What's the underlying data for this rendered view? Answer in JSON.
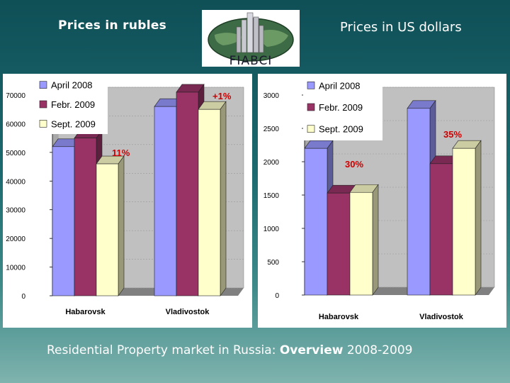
{
  "slide": {
    "left_title": "Prices in rubles",
    "right_title": "Prices in US dollars",
    "logo_text": "FIABCI",
    "footer_part1": "Residential Property market in Russia",
    "footer_sep": ": ",
    "footer_part2": "Overview",
    "footer_part3": " 2008-2009"
  },
  "colors": {
    "april_2008": "#9999ff",
    "febr_2009": "#993366",
    "sept_2009": "#ffffcc",
    "annotation": "#cc0000",
    "floor": "#808080",
    "wall": "#c0c0c0"
  },
  "chart_data": [
    {
      "type": "bar",
      "categories": [
        "Habarovsk",
        "Vladivostok"
      ],
      "series": [
        {
          "name": "April 2008",
          "values": [
            52000,
            66000
          ]
        },
        {
          "name": "Febr. 2009",
          "values": [
            55000,
            71000
          ]
        },
        {
          "name": "Sept. 2009",
          "values": [
            46000,
            65000
          ]
        }
      ],
      "ylim": [
        0,
        70000
      ],
      "yticks": [
        "0",
        "10000",
        "20000",
        "30000",
        "40000",
        "50000",
        "60000",
        "70000"
      ],
      "annotations": [
        "+1%",
        "11%"
      ],
      "legend": "top-left",
      "three_d": true
    },
    {
      "type": "bar",
      "categories": [
        "Habarovsk",
        "Vladivostok"
      ],
      "series": [
        {
          "name": "April 2008",
          "values": [
            2200,
            2800
          ]
        },
        {
          "name": "Febr. 2009",
          "values": [
            1530,
            1970
          ]
        },
        {
          "name": "Sept. 2009",
          "values": [
            1540,
            2200
          ]
        }
      ],
      "ylim": [
        0,
        3000
      ],
      "yticks": [
        "0",
        "500",
        "1000",
        "1500",
        "2000",
        "2500",
        "3000"
      ],
      "annotations": [
        "35%",
        "30%"
      ],
      "legend": "top-left",
      "three_d": true
    }
  ]
}
